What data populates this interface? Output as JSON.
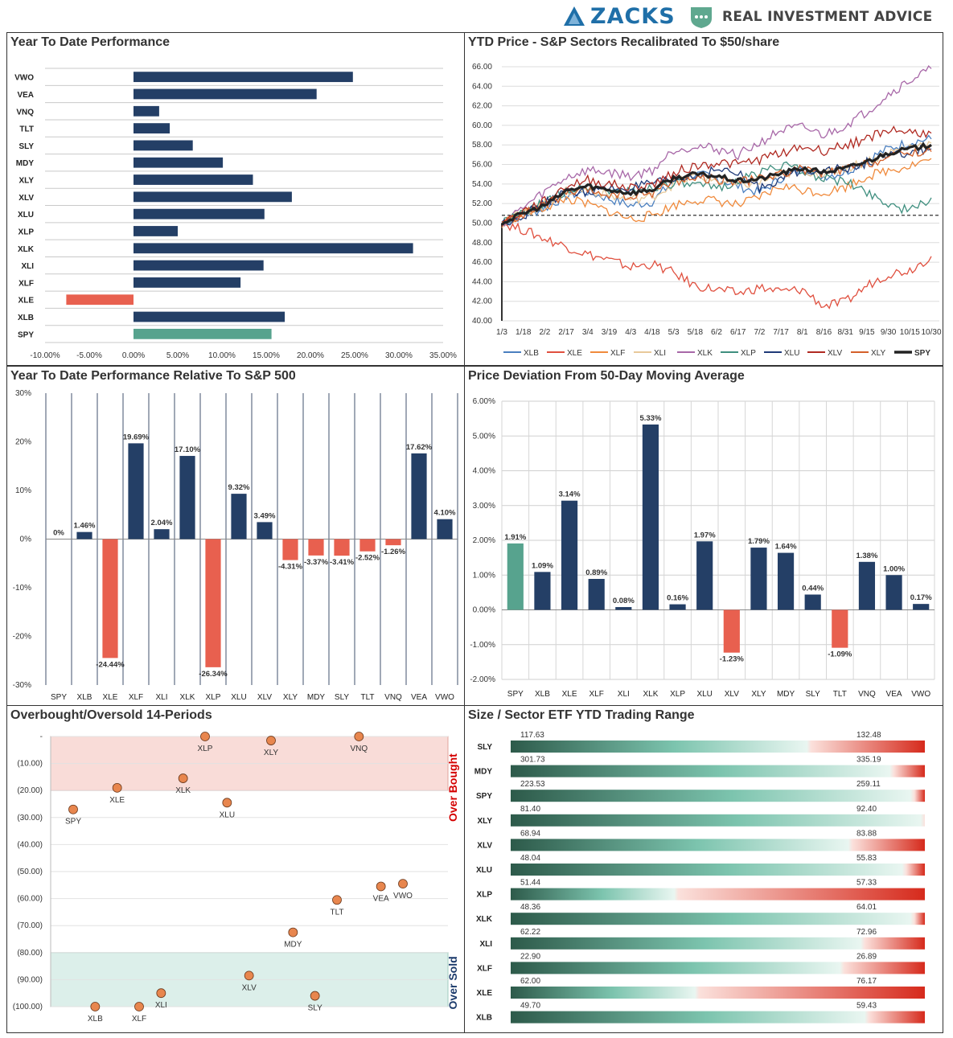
{
  "header": {
    "zacks_label": "ZACKS",
    "ria_label": "REAL INVESTMENT ADVICE"
  },
  "colors": {
    "navy": "#243f66",
    "red": "#e8604f",
    "green": "#57a38e",
    "orange": "#e8864e"
  },
  "panel1": {
    "title": "Year To Date Performance",
    "chart_data": {
      "type": "bar",
      "orientation": "horizontal",
      "categories": [
        "VWO",
        "VEA",
        "VNQ",
        "TLT",
        "SLY",
        "MDY",
        "XLY",
        "XLV",
        "XLU",
        "XLP",
        "XLK",
        "XLI",
        "XLF",
        "XLE",
        "XLB",
        "SPY"
      ],
      "values": [
        24.8,
        20.7,
        2.9,
        4.1,
        6.7,
        10.1,
        13.5,
        17.9,
        14.8,
        5.0,
        31.6,
        14.7,
        12.1,
        -7.6,
        17.1,
        15.6
      ],
      "xlim": [
        -10,
        35
      ],
      "ticks": [
        -10,
        -5,
        0,
        5,
        10,
        15,
        20,
        25,
        30,
        35
      ],
      "tick_labels": [
        "-10.00%",
        "-5.00%",
        "0.00%",
        "5.00%",
        "10.00%",
        "15.00%",
        "20.00%",
        "25.00%",
        "30.00%",
        "35.00%"
      ]
    }
  },
  "panel2": {
    "title": "YTD Price - S&P Sectors Recalibrated To $50/share",
    "chart_data": {
      "type": "line",
      "x_labels": [
        "1/3",
        "1/18",
        "2/2",
        "2/17",
        "3/4",
        "3/19",
        "4/3",
        "4/18",
        "5/3",
        "5/18",
        "6/2",
        "6/17",
        "7/2",
        "7/17",
        "8/1",
        "8/16",
        "8/31",
        "9/15",
        "9/30",
        "10/15",
        "10/30"
      ],
      "ylim": [
        40,
        66
      ],
      "y_ticks": [
        40,
        42,
        44,
        46,
        48,
        50,
        52,
        54,
        56,
        58,
        60,
        62,
        64,
        66
      ],
      "y_tick_labels": [
        "40.00",
        "42.00",
        "44.00",
        "46.00",
        "48.00",
        "50.00",
        "52.00",
        "54.00",
        "56.00",
        "58.00",
        "60.00",
        "62.00",
        "64.00",
        "66.00"
      ],
      "reference_line": 50.8,
      "series": [
        {
          "name": "XLB",
          "color": "#4a7fbf",
          "values": [
            50,
            50.8,
            51.5,
            52.8,
            53.2,
            52.5,
            51.8,
            52.2,
            54.3,
            55.0,
            54.6,
            53.8,
            53.1,
            54.6,
            55.6,
            54.8,
            55.2,
            56.5,
            57.6,
            58.3,
            58.6
          ]
        },
        {
          "name": "XLE",
          "color": "#e0503f",
          "values": [
            50,
            49.3,
            48.4,
            47.6,
            46.8,
            46.2,
            45.5,
            45.8,
            44.9,
            43.6,
            43.2,
            42.8,
            43.4,
            43.0,
            43.2,
            41.5,
            41.9,
            43.6,
            44.8,
            45.2,
            46.6
          ]
        },
        {
          "name": "XLF",
          "color": "#f08a3c",
          "values": [
            50,
            51.0,
            51.6,
            52.5,
            51.9,
            51.2,
            50.4,
            50.8,
            51.8,
            52.4,
            52.3,
            51.8,
            52.6,
            53.8,
            53.4,
            53.1,
            53.7,
            54.8,
            55.4,
            55.9,
            56.6
          ]
        },
        {
          "name": "XLI",
          "color": "#e8c99a",
          "values": [
            50,
            51.1,
            52.0,
            53.2,
            53.5,
            52.8,
            52.4,
            52.7,
            54.0,
            54.8,
            54.4,
            53.8,
            54.2,
            54.9,
            55.4,
            55.0,
            55.6,
            56.3,
            57.2,
            57.8,
            58.2
          ]
        },
        {
          "name": "XLK",
          "color": "#a868a8",
          "values": [
            50,
            51.6,
            53.2,
            54.7,
            55.4,
            55.2,
            54.8,
            55.4,
            57.5,
            57.9,
            57.6,
            57.0,
            58.2,
            59.5,
            59.8,
            59.0,
            60.0,
            61.4,
            63.2,
            64.6,
            65.8
          ]
        },
        {
          "name": "XLP",
          "color": "#3f8f7f",
          "values": [
            50,
            51.0,
            52.1,
            53.3,
            53.7,
            53.4,
            53.2,
            53.7,
            54.1,
            53.8,
            53.6,
            54.3,
            55.2,
            56.0,
            55.3,
            54.6,
            54.2,
            53.2,
            52.0,
            51.2,
            52.6
          ]
        },
        {
          "name": "XLU",
          "color": "#1f3a78",
          "values": [
            50,
            50.8,
            52.0,
            53.2,
            53.2,
            53.5,
            53.6,
            54.0,
            54.4,
            54.8,
            55.5,
            55.0,
            53.6,
            54.6,
            55.4,
            55.6,
            55.4,
            56.2,
            56.8,
            57.2,
            57.6
          ]
        },
        {
          "name": "XLV",
          "color": "#b02a22",
          "values": [
            50,
            51.2,
            52.2,
            53.8,
            54.4,
            54.0,
            53.6,
            53.9,
            55.2,
            55.8,
            56.2,
            56.0,
            56.5,
            57.2,
            57.8,
            57.4,
            58.0,
            58.6,
            59.6,
            59.3,
            59.2
          ]
        },
        {
          "name": "XLY",
          "color": "#d4602a",
          "values": [
            50,
            50.9,
            51.8,
            53.0,
            53.3,
            52.9,
            52.6,
            53.1,
            54.3,
            54.6,
            54.5,
            54.2,
            54.5,
            55.1,
            55.5,
            55.0,
            55.5,
            56.0,
            56.7,
            57.2,
            57.3
          ]
        },
        {
          "name": "SPY",
          "color": "#222222",
          "values": [
            50,
            51.0,
            51.8,
            53.3,
            53.8,
            53.4,
            53.1,
            53.4,
            54.6,
            55.0,
            54.8,
            54.3,
            54.5,
            55.1,
            55.6,
            55.2,
            55.6,
            56.3,
            57.2,
            57.6,
            58.0
          ]
        }
      ]
    }
  },
  "panel3": {
    "title": "Year To Date Performance Relative To S&P 500",
    "chart_data": {
      "type": "bar",
      "categories": [
        "SPY",
        "XLB",
        "XLE",
        "XLF",
        "XLI",
        "XLK",
        "XLP",
        "XLU",
        "XLV",
        "XLY",
        "MDY",
        "SLY",
        "TLT",
        "VNQ",
        "VEA",
        "VWO"
      ],
      "values": [
        0,
        1.46,
        -24.44,
        19.69,
        2.04,
        17.1,
        -26.34,
        9.32,
        3.49,
        -4.31,
        -3.37,
        -3.41,
        -2.52,
        -1.26,
        17.62,
        4.1
      ],
      "value_labels": [
        "0%",
        "1.46%",
        "-24.44%",
        "19.69%",
        "2.04%",
        "17.10%",
        "-26.34%",
        "9.32%",
        "3.49%",
        "-4.31%",
        "-3.37%",
        "-3.41%",
        "-2.52%",
        "-1.26%",
        "17.62%",
        "4.10%"
      ],
      "ylim": [
        -30,
        30
      ],
      "y_ticks": [
        -30,
        -20,
        -10,
        0,
        10,
        20,
        30
      ],
      "y_tick_labels": [
        "-30%",
        "-20%",
        "-10%",
        "0%",
        "10%",
        "20%",
        "30%"
      ]
    }
  },
  "panel4": {
    "title": "Price Deviation From 50-Day Moving Average",
    "chart_data": {
      "type": "bar",
      "categories": [
        "SPY",
        "XLB",
        "XLE",
        "XLF",
        "XLI",
        "XLK",
        "XLP",
        "XLU",
        "XLV",
        "XLY",
        "MDY",
        "SLY",
        "TLT",
        "VNQ",
        "VEA",
        "VWO"
      ],
      "values": [
        1.91,
        1.09,
        3.14,
        0.89,
        0.08,
        5.33,
        0.16,
        1.97,
        -1.23,
        1.79,
        1.64,
        0.44,
        -1.09,
        1.38,
        1.0,
        0.17
      ],
      "value_labels": [
        "1.91%",
        "1.09%",
        "3.14%",
        "0.89%",
        "0.08%",
        "5.33%",
        "0.16%",
        "1.97%",
        "-1.23%",
        "1.79%",
        "1.64%",
        "0.44%",
        "-1.09%",
        "1.38%",
        "1.00%",
        "0.17%"
      ],
      "ylim": [
        -2,
        6
      ],
      "y_ticks": [
        -2,
        -1,
        0,
        1,
        2,
        3,
        4,
        5,
        6
      ],
      "y_tick_labels": [
        "-2.00%",
        "-1.00%",
        "0.00%",
        "1.00%",
        "2.00%",
        "3.00%",
        "4.00%",
        "5.00%",
        "6.00%"
      ]
    }
  },
  "panel5": {
    "title": "Overbought/Oversold 14-Periods",
    "over_bought_label": "Over Bought",
    "over_sold_label": "Over Sold",
    "chart_data": {
      "type": "scatter",
      "ylim": [
        -100,
        0
      ],
      "overbought_zone": [
        -20,
        0
      ],
      "oversold_zone": [
        -100,
        -80
      ],
      "y_ticks": [
        0,
        -10,
        -20,
        -30,
        -40,
        -50,
        -60,
        -70,
        -80,
        -90,
        -100
      ],
      "y_tick_labels": [
        "-",
        "(10.00)",
        "(20.00)",
        "(30.00)",
        "(40.00)",
        "(50.00)",
        "(60.00)",
        "(70.00)",
        "(80.00)",
        "(90.00)",
        "(100.00)"
      ],
      "points": [
        {
          "name": "SPY",
          "x": 1,
          "y": -27
        },
        {
          "name": "XLB",
          "x": 2,
          "y": -100
        },
        {
          "name": "XLE",
          "x": 3,
          "y": -19
        },
        {
          "name": "XLF",
          "x": 4,
          "y": -100
        },
        {
          "name": "XLI",
          "x": 5,
          "y": -95
        },
        {
          "name": "XLK",
          "x": 6,
          "y": -15.5
        },
        {
          "name": "XLP",
          "x": 7,
          "y": 0
        },
        {
          "name": "XLU",
          "x": 8,
          "y": -24.5
        },
        {
          "name": "XLV",
          "x": 9,
          "y": -88.5
        },
        {
          "name": "XLY",
          "x": 10,
          "y": -1.5
        },
        {
          "name": "MDY",
          "x": 11,
          "y": -72.5
        },
        {
          "name": "SLY",
          "x": 12,
          "y": -96
        },
        {
          "name": "TLT",
          "x": 13,
          "y": -60.5
        },
        {
          "name": "VNQ",
          "x": 14,
          "y": 0
        },
        {
          "name": "VEA",
          "x": 15,
          "y": -55.5
        },
        {
          "name": "VWO",
          "x": 16,
          "y": -54.5
        }
      ]
    }
  },
  "panel6": {
    "title": "Size / Sector ETF YTD Trading Range",
    "chart_data": {
      "type": "range",
      "rows": [
        {
          "name": "SLY",
          "low": "117.63",
          "high": "132.48",
          "position": 0.72
        },
        {
          "name": "MDY",
          "low": "301.73",
          "high": "335.19",
          "position": 0.92
        },
        {
          "name": "SPY",
          "low": "223.53",
          "high": "259.11",
          "position": 0.97
        },
        {
          "name": "XLY",
          "low": "81.40",
          "high": "92.40",
          "position": 0.995
        },
        {
          "name": "XLV",
          "low": "68.94",
          "high": "83.88",
          "position": 0.82
        },
        {
          "name": "XLU",
          "low": "48.04",
          "high": "55.83",
          "position": 0.95
        },
        {
          "name": "XLP",
          "low": "51.44",
          "high": "57.33",
          "position": 0.4
        },
        {
          "name": "XLK",
          "low": "48.36",
          "high": "64.01",
          "position": 0.97
        },
        {
          "name": "XLI",
          "low": "62.22",
          "high": "72.96",
          "position": 0.85
        },
        {
          "name": "XLF",
          "low": "22.90",
          "high": "26.89",
          "position": 0.8
        },
        {
          "name": "XLE",
          "low": "62.00",
          "high": "76.17",
          "position": 0.45
        },
        {
          "name": "XLB",
          "low": "49.70",
          "high": "59.43",
          "position": 0.86
        }
      ]
    }
  }
}
